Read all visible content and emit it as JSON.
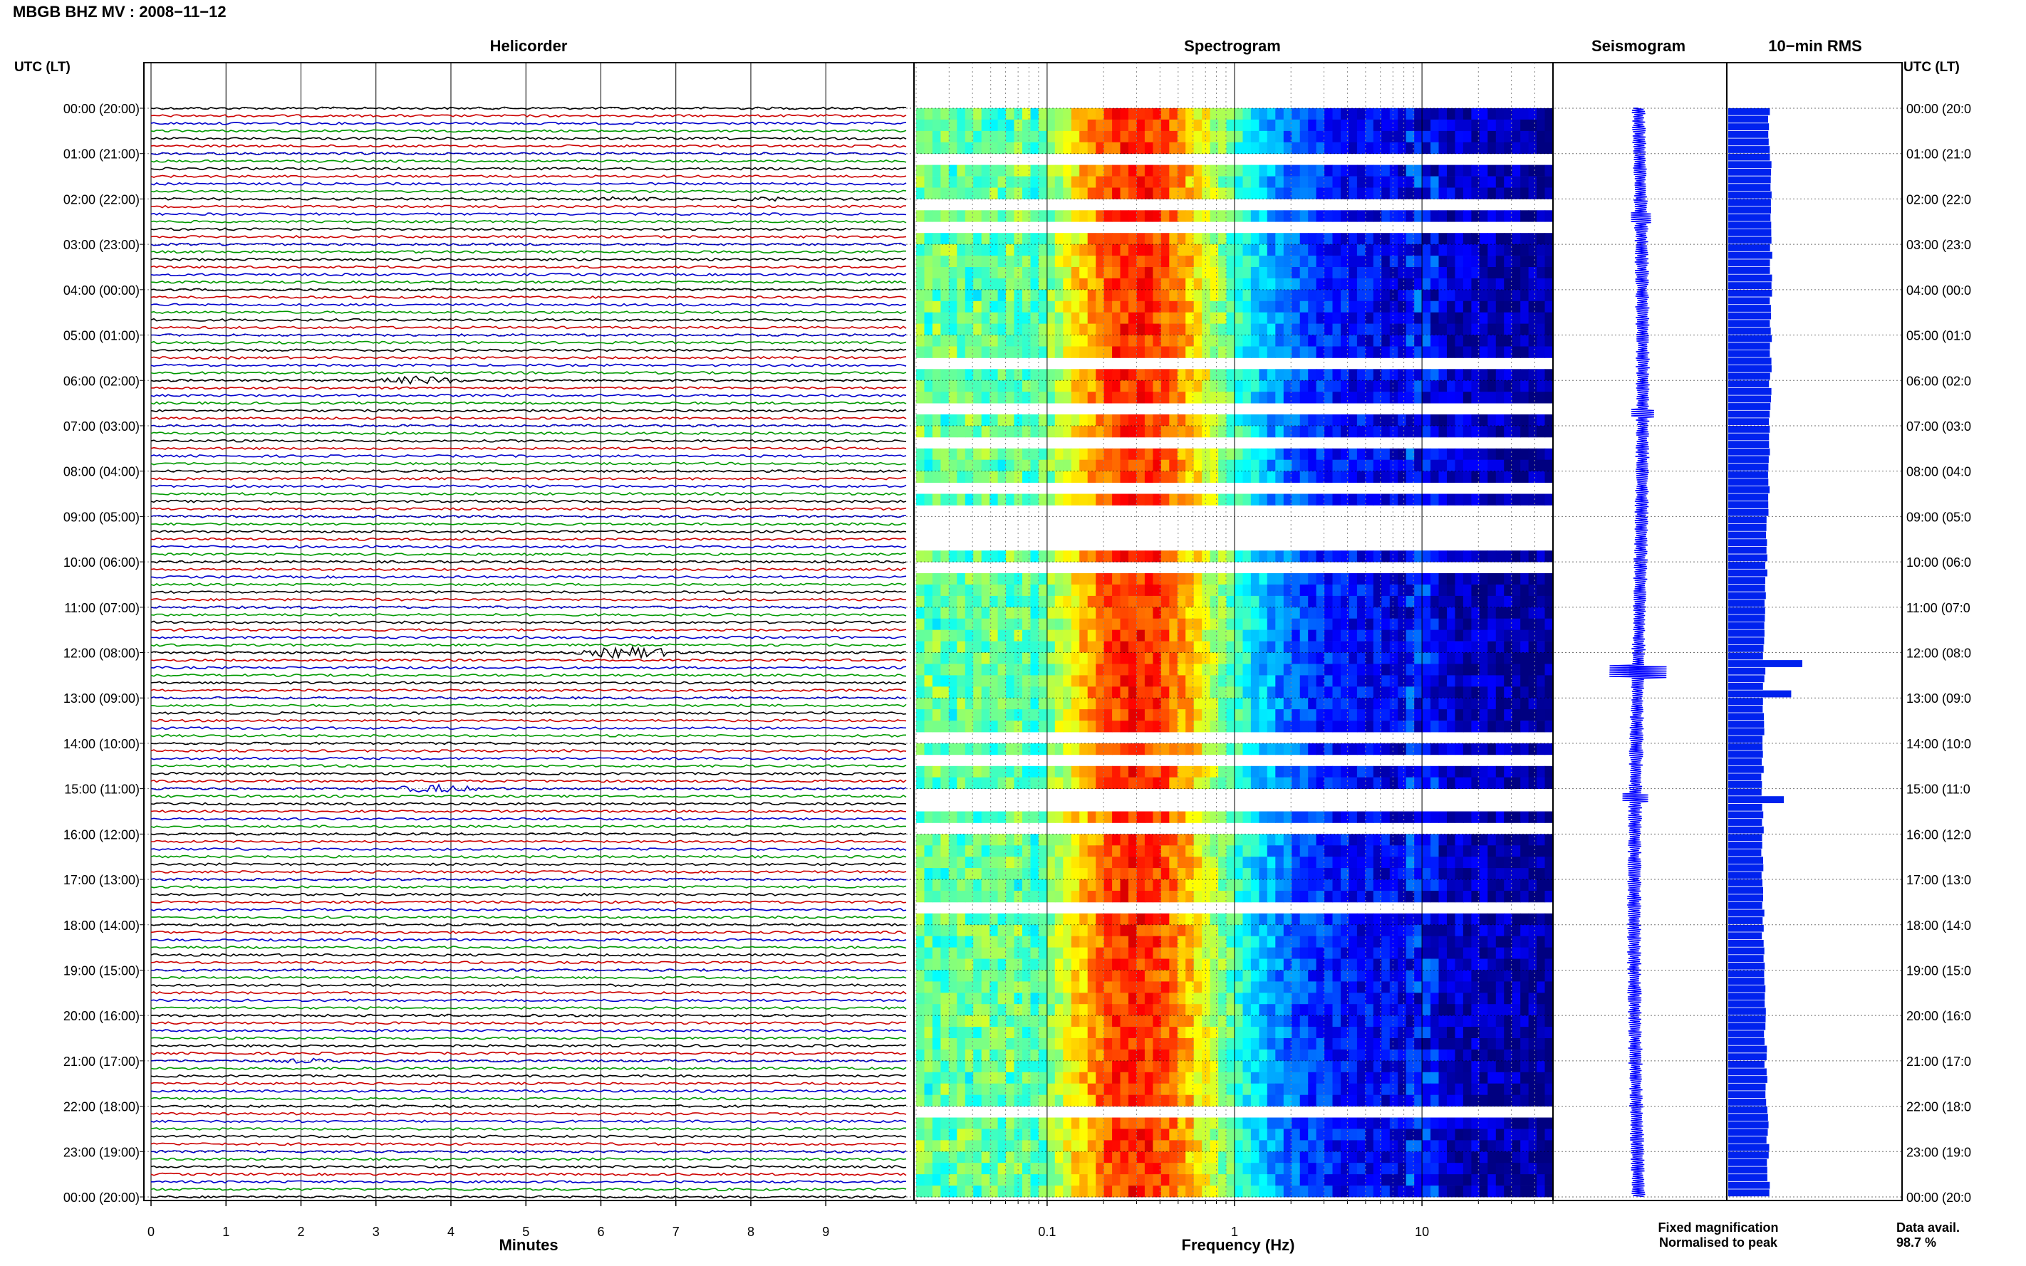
{
  "header": {
    "title": "MBGB BHZ MV : 2008−11−12"
  },
  "panels": {
    "helicorder": "Helicorder",
    "spectrogram": "Spectrogram",
    "seismogram": "Seismogram",
    "rms": "10−min RMS"
  },
  "axis": {
    "time_header_left": "UTC (LT)",
    "time_header_right": "UTC (LT)",
    "minutes_label": "Minutes",
    "frequency_label": "Frequency (Hz)",
    "minute_ticks": [
      "0",
      "1",
      "2",
      "3",
      "4",
      "5",
      "6",
      "7",
      "8",
      "9"
    ],
    "freq_ticks": [
      "0.1",
      "1",
      "10"
    ]
  },
  "time_labels_left": [
    "00:00 (20:00)",
    "01:00 (21:00)",
    "02:00 (22:00)",
    "03:00 (23:00)",
    "04:00 (00:00)",
    "05:00 (01:00)",
    "06:00 (02:00)",
    "07:00 (03:00)",
    "08:00 (04:00)",
    "09:00 (05:00)",
    "10:00 (06:00)",
    "11:00 (07:00)",
    "12:00 (08:00)",
    "13:00 (09:00)",
    "14:00 (10:00)",
    "15:00 (11:00)",
    "16:00 (12:00)",
    "17:00 (13:00)",
    "18:00 (14:00)",
    "19:00 (15:00)",
    "20:00 (16:00)",
    "21:00 (17:00)",
    "22:00 (18:00)",
    "23:00 (19:00)",
    "00:00 (20:00)"
  ],
  "time_labels_right": [
    "00:00 (20:0",
    "01:00 (21:0",
    "02:00 (22:0",
    "03:00 (23:0",
    "04:00 (00:0",
    "05:00 (01:0",
    "06:00 (02:0",
    "07:00 (03:0",
    "08:00 (04:0",
    "09:00 (05:0",
    "10:00 (06:0",
    "11:00 (07:0",
    "12:00 (08:0",
    "13:00 (09:0",
    "14:00 (10:0",
    "15:00 (11:0",
    "16:00 (12:0",
    "17:00 (13:0",
    "18:00 (14:0",
    "19:00 (15:0",
    "20:00 (16:0",
    "21:00 (17:0",
    "22:00 (18:0",
    "23:00 (19:0",
    "00:00 (20:0"
  ],
  "legend": {
    "fixed": "Fixed magnification",
    "normalised": "Normalised to peak",
    "fixed_color": "#0000ff",
    "normalised_color": "#ff0000"
  },
  "availability": {
    "label": "Data avail.",
    "value": "98.7 %"
  },
  "colors": {
    "trace_cycle": [
      "#000000",
      "#cc0000",
      "#0000cc",
      "#009900"
    ],
    "rms_bar": "#0022ee",
    "grid": "#000000"
  },
  "chart_data": [
    {
      "type": "line",
      "name": "helicorder",
      "rows_per_hour": 6,
      "hours": 24,
      "x_range_minutes": [
        0,
        10
      ],
      "events": [
        {
          "hour": 2,
          "minute": 6.3,
          "amp": "small"
        },
        {
          "hour": 2,
          "minute": 8.2,
          "amp": "small"
        },
        {
          "hour": 6,
          "minute": 3.6,
          "amp": "medium"
        },
        {
          "hour": 12,
          "minute": 6.4,
          "amp": "large"
        },
        {
          "hour": 15,
          "minute": 3.8,
          "amp": "medium"
        },
        {
          "hour": 21,
          "minute": 2.1,
          "amp": "small"
        }
      ]
    },
    {
      "type": "heatmap",
      "name": "spectrogram",
      "x_scale": "log",
      "xlim": [
        0.02,
        50
      ],
      "colormap": "jet",
      "energy_peak_hz": 0.3
    },
    {
      "type": "bar",
      "name": "10-min RMS",
      "hours": 24,
      "spikes": [
        {
          "hour": 12.2,
          "relative": 1.0
        },
        {
          "hour": 12.8,
          "relative": 0.7
        },
        {
          "hour": 15.2,
          "relative": 0.5
        }
      ]
    }
  ]
}
